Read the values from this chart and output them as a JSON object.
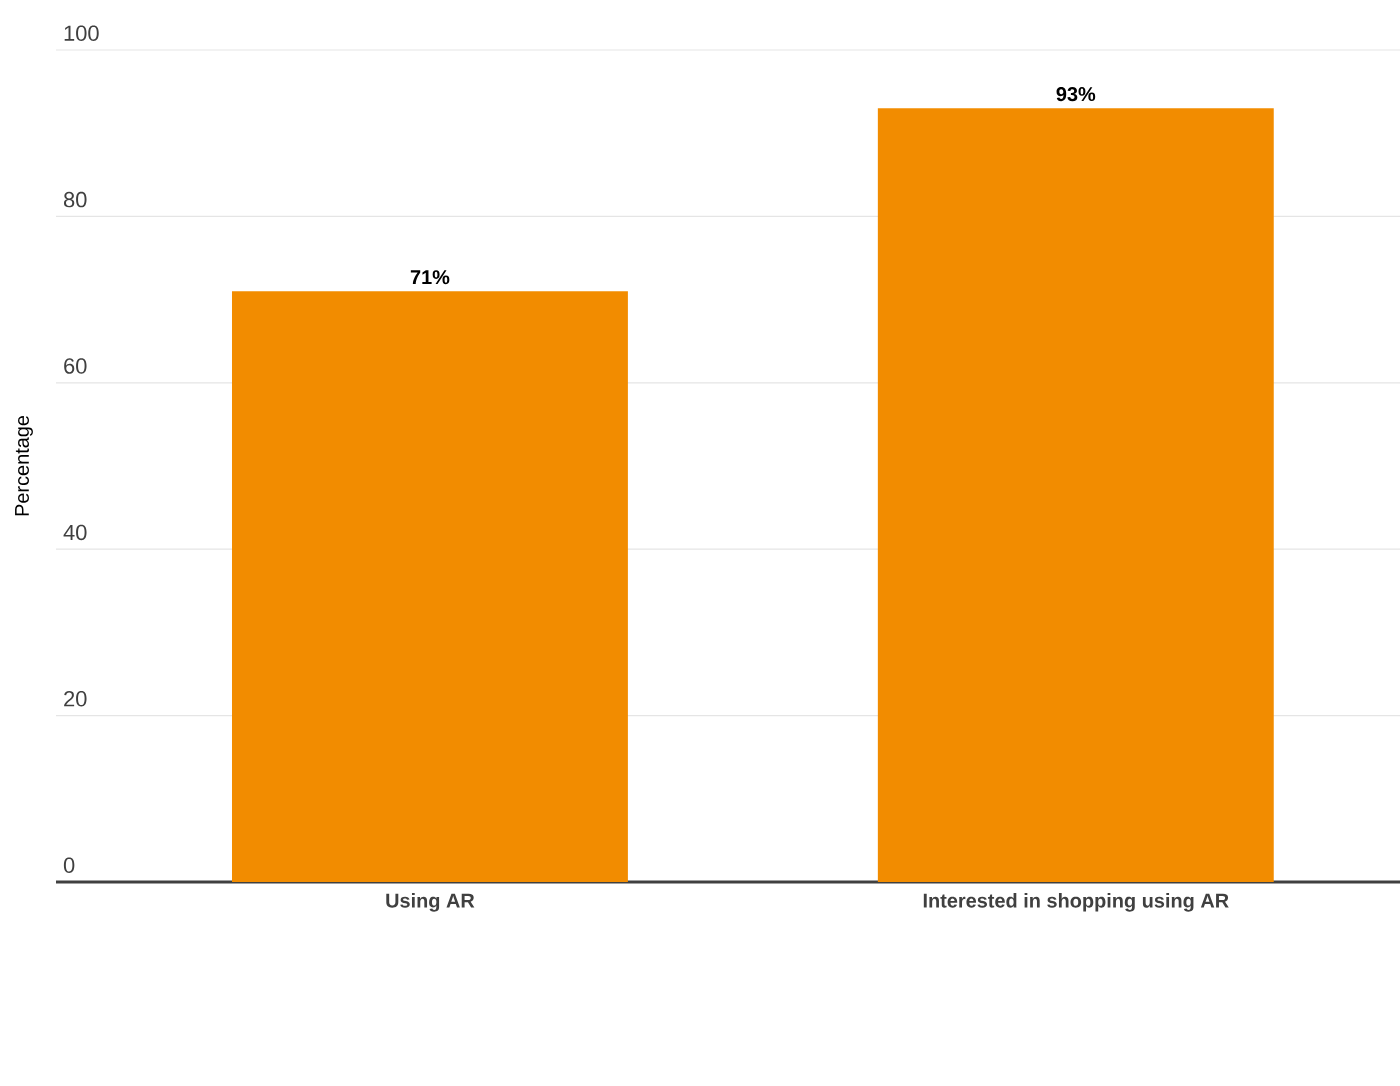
{
  "chart_data": {
    "type": "bar",
    "ylabel": "Percentage",
    "categories": [
      "Using AR",
      "Interested in shopping using AR"
    ],
    "values": [
      71,
      93
    ],
    "value_labels": [
      "71%",
      "93%"
    ],
    "color": "#f28c00",
    "ylim": [
      0,
      100
    ],
    "yticks": [
      0,
      20,
      40,
      60,
      80,
      100
    ],
    "grid": "y"
  }
}
